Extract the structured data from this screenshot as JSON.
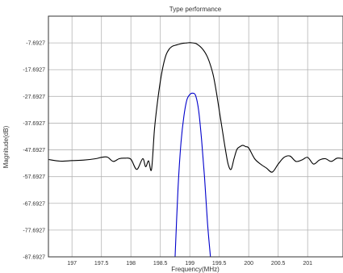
{
  "chart_data": {
    "type": "line",
    "title": "Type performance",
    "xlabel": "Frequency(MHz)",
    "ylabel": "Magnitude(dB)",
    "xlim": [
      196.6,
      201.6
    ],
    "ylim": [
      -87.6927,
      2.3073
    ],
    "x_ticks": [
      197,
      197.5,
      198,
      198.5,
      199,
      199.5,
      200,
      200.5,
      201
    ],
    "x_tick_labels": [
      "197",
      "197.5",
      "198",
      "198.5",
      "199",
      "199.5",
      "200",
      "200.5",
      "201"
    ],
    "y_ticks": [
      -7.6927,
      -17.6927,
      -27.6927,
      -37.6927,
      -47.6927,
      -57.6927,
      -67.6927,
      -77.6927,
      -87.6927
    ],
    "y_tick_labels": [
      "-7.6927",
      "-17.6927",
      "-27.6927",
      "-37.6927",
      "-47.6927",
      "-57.6927",
      "-67.6927",
      "-77.6927",
      "-87.6927"
    ],
    "grid": true,
    "series": [
      {
        "color": "#000000",
        "x": [
          196.6,
          196.8,
          197.0,
          197.2,
          197.4,
          197.5,
          197.6,
          197.7,
          197.8,
          197.9,
          198.0,
          198.1,
          198.2,
          198.25,
          198.3,
          198.35,
          198.4,
          198.45,
          198.5,
          198.55,
          198.6,
          198.65,
          198.7,
          198.75,
          198.8,
          198.85,
          198.9,
          198.95,
          199.0,
          199.05,
          199.1,
          199.15,
          199.2,
          199.25,
          199.3,
          199.35,
          199.4,
          199.45,
          199.5,
          199.55,
          199.6,
          199.65,
          199.7,
          199.75,
          199.8,
          199.85,
          199.9,
          199.95,
          200.0,
          200.1,
          200.2,
          200.3,
          200.4,
          200.5,
          200.6,
          200.7,
          200.8,
          200.9,
          201.0,
          201.1,
          201.2,
          201.3,
          201.4,
          201.5,
          201.6
        ],
        "y": [
          -51.3,
          -51.9,
          -51.7,
          -51.5,
          -51.0,
          -50.5,
          -50.4,
          -52.0,
          -51.0,
          -50.8,
          -51.2,
          -55.0,
          -51.0,
          -54.0,
          -51.8,
          -55.0,
          -40.0,
          -30.0,
          -22.0,
          -16.0,
          -12.0,
          -10.0,
          -9.0,
          -8.6,
          -8.3,
          -8.0,
          -7.8,
          -7.7,
          -7.6,
          -7.7,
          -7.9,
          -8.6,
          -9.6,
          -11.0,
          -13.0,
          -16.0,
          -20.0,
          -26.0,
          -33.0,
          -40.0,
          -47.0,
          -53.0,
          -55.0,
          -51.0,
          -47.5,
          -46.5,
          -46.0,
          -46.5,
          -47.0,
          -51.0,
          -53.0,
          -54.5,
          -56.0,
          -53.0,
          -50.5,
          -50.0,
          -52.0,
          -51.5,
          -50.5,
          -53.0,
          -51.5,
          -51.0,
          -52.0,
          -50.8,
          -51.0
        ]
      },
      {
        "color": "#0000cc",
        "x": [
          198.75,
          198.8,
          198.85,
          198.9,
          198.95,
          199.0,
          199.05,
          199.1,
          199.15,
          199.2,
          199.25,
          199.3,
          199.35
        ],
        "y": [
          -87.6927,
          -62.0,
          -45.0,
          -35.0,
          -29.0,
          -27.0,
          -26.5,
          -27.5,
          -33.0,
          -44.0,
          -58.0,
          -75.0,
          -87.6927
        ]
      }
    ]
  }
}
